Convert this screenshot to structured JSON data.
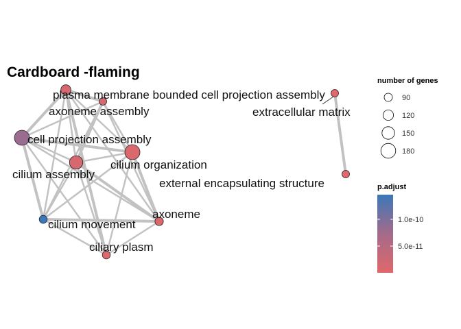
{
  "title": "Cardboard -flaming",
  "colors": {
    "high": "#3b78b8",
    "low": "#e0686a",
    "edge": "#c2c2c2"
  },
  "chart_data": {
    "type": "network",
    "nodes": [
      {
        "label": "plasma membrane bounded cell projection assembly",
        "genes": 120,
        "padj_level": 0.08
      },
      {
        "label": "extracellular matrix",
        "genes": 90,
        "padj_level": 0.0
      },
      {
        "label": "axoneme assembly",
        "genes": 90,
        "padj_level": 0.1
      },
      {
        "label": "cell projection assembly",
        "genes": 180,
        "padj_level": 0.55
      },
      {
        "label": "cilium organization",
        "genes": 180,
        "padj_level": 0.05
      },
      {
        "label": "cilium assembly",
        "genes": 160,
        "padj_level": 0.08
      },
      {
        "label": "external encapsulating structure",
        "genes": 90,
        "padj_level": 0.0
      },
      {
        "label": "axoneme",
        "genes": 100,
        "padj_level": 0.05
      },
      {
        "label": "cilium movement",
        "genes": 95,
        "padj_level": 1.0
      },
      {
        "label": "ciliary plasm",
        "genes": 95,
        "padj_level": 0.04
      }
    ],
    "edges": [
      [
        0,
        3
      ],
      [
        0,
        4
      ],
      [
        0,
        5
      ],
      [
        0,
        2
      ],
      [
        0,
        7
      ],
      [
        0,
        8
      ],
      [
        0,
        9
      ],
      [
        2,
        3
      ],
      [
        2,
        4
      ],
      [
        2,
        5
      ],
      [
        2,
        7
      ],
      [
        2,
        8
      ],
      [
        3,
        4
      ],
      [
        3,
        5
      ],
      [
        3,
        7
      ],
      [
        3,
        8
      ],
      [
        3,
        9
      ],
      [
        4,
        5
      ],
      [
        4,
        7
      ],
      [
        4,
        8
      ],
      [
        4,
        9
      ],
      [
        5,
        7
      ],
      [
        5,
        8
      ],
      [
        5,
        9
      ],
      [
        7,
        8
      ],
      [
        7,
        9
      ],
      [
        8,
        9
      ],
      [
        1,
        6
      ]
    ],
    "legend": {
      "size_title": "number of genes",
      "size_values": [
        90,
        120,
        150,
        180
      ],
      "color_title": "p.adjust",
      "color_ticks": [
        "1.0e-10",
        "5.0e-11"
      ]
    }
  }
}
